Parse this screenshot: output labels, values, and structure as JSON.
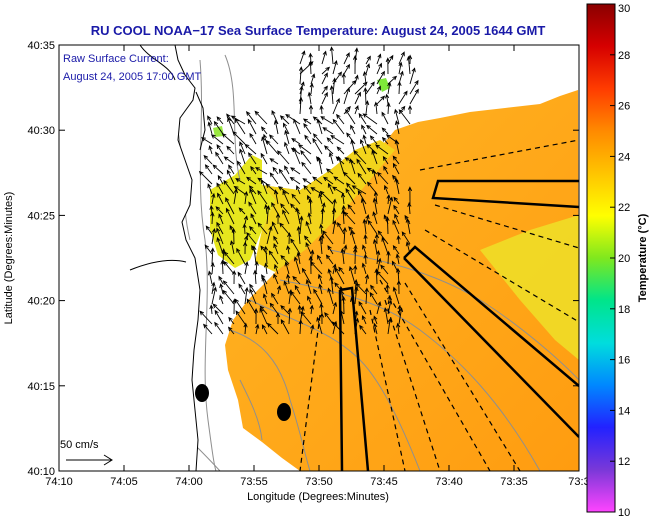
{
  "title": "RU COOL  NOAA−17  Sea Surface Temperature:  August 24, 2005 1644 GMT",
  "overlay_lines": [
    "Raw Surface Current:",
    "August 24, 2005 17:00 GMT"
  ],
  "axes": {
    "xlabel": "Longitude (Degrees:Minutes)",
    "ylabel": "Latitude (Degrees:Minutes)",
    "x_ticks": [
      "74:10",
      "74:05",
      "74:00",
      "73:55",
      "73:50",
      "73:45",
      "73:40",
      "73:35",
      "73:3"
    ],
    "y_ticks": [
      "40:35",
      "40:30",
      "40:25",
      "40:20",
      "40:15",
      "40:10"
    ]
  },
  "scale_vector_label": "50 cm/s",
  "colorbar": {
    "label": "Temperature (°C)",
    "min": 10,
    "max": 30,
    "ticks": [
      "10",
      "12",
      "14",
      "16",
      "18",
      "20",
      "22",
      "24",
      "26",
      "28",
      "30"
    ],
    "colors": [
      "#ff44ff",
      "#7a38d8",
      "#2222ff",
      "#0088ff",
      "#00dddd",
      "#00e58a",
      "#7fe81e",
      "#ffff00",
      "#ffc400",
      "#ff8a00",
      "#ff3c00",
      "#d60000",
      "#8a0000"
    ]
  },
  "map_colors": {
    "warm_ocean": "#ffae1c",
    "warm_ocean_2": "#ff9a12",
    "cooler_ocean": "#f6d21c",
    "yellow_ocean": "#e8e820",
    "green_spot": "#7fe83a",
    "land": "#ffffff",
    "coast": "#000000",
    "bathymetry": "#8f8f8f"
  }
}
